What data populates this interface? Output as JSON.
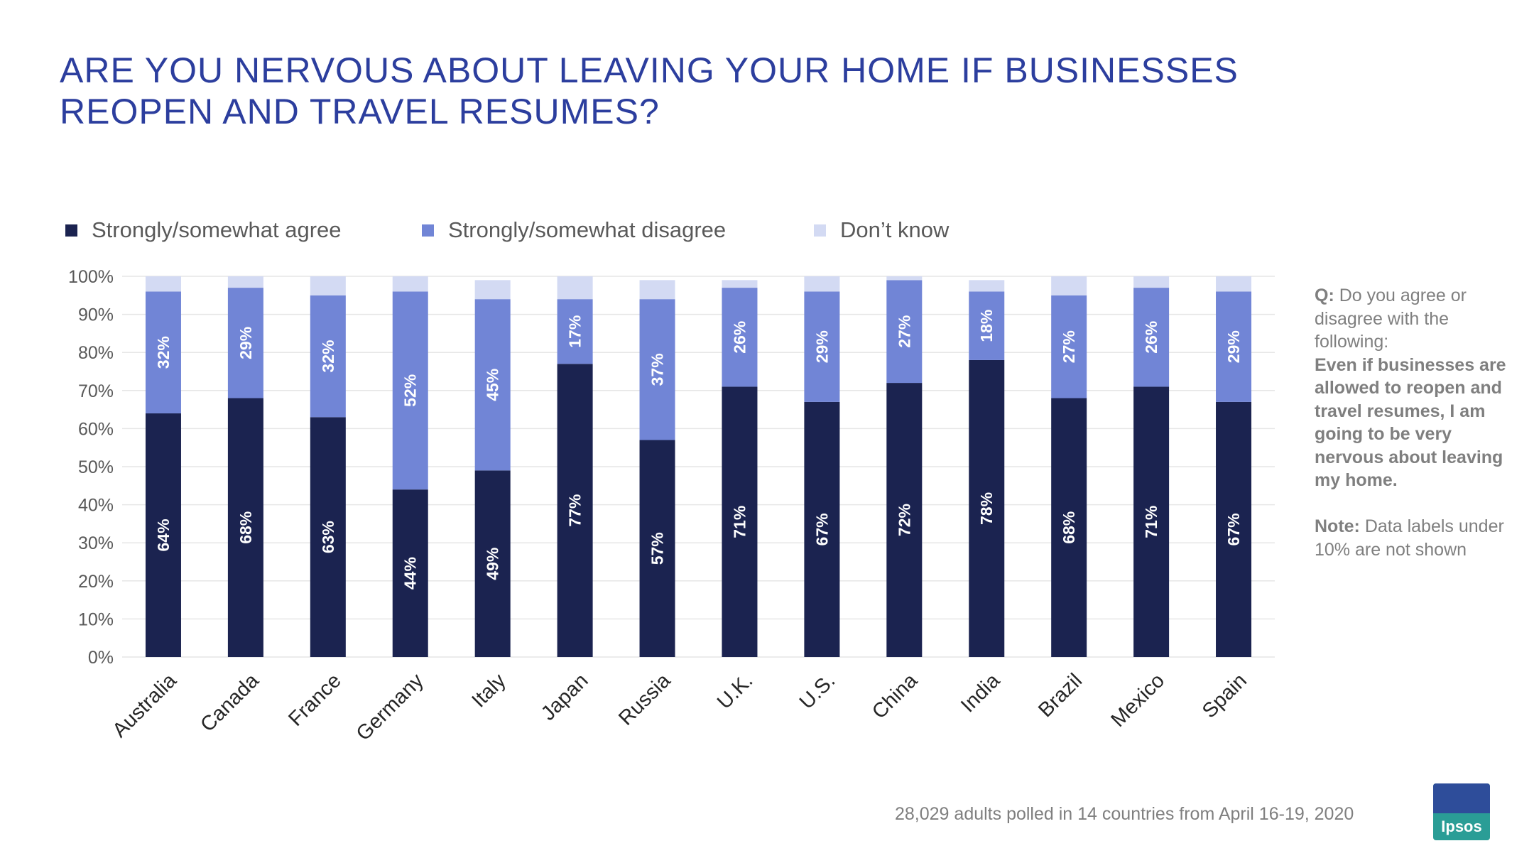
{
  "title_lines": [
    "ARE YOU NERVOUS ABOUT LEAVING YOUR HOME IF BUSINESSES",
    "REOPEN AND TRAVEL RESUMES?"
  ],
  "colors": {
    "agree": "#1b2350",
    "disagree": "#7185d6",
    "dont_know": "#d3daf3",
    "title": "#2c3e9e"
  },
  "side_note": {
    "q_label": "Q:",
    "q_text": "Do you agree or disagree with the following:",
    "statement": "Even if businesses are allowed to reopen and travel resumes, I am going to be very nervous about leaving my home.",
    "note_label": "Note:",
    "note_text": "Data labels under 10% are not shown"
  },
  "footer": "28,029 adults polled in 14 countries from April 16-19, 2020",
  "logo_text": "Ipsos",
  "chart_data": {
    "type": "bar",
    "stacked": true,
    "categories": [
      "Australia",
      "Canada",
      "France",
      "Germany",
      "Italy",
      "Japan",
      "Russia",
      "U.K.",
      "U.S.",
      "China",
      "India",
      "Brazil",
      "Mexico",
      "Spain"
    ],
    "series": [
      {
        "name": "Strongly/somewhat agree",
        "values": [
          64,
          68,
          63,
          44,
          49,
          77,
          57,
          71,
          67,
          72,
          78,
          68,
          71,
          67
        ],
        "labels": [
          "64%",
          "68%",
          "63%",
          "44%",
          "49%",
          "77%",
          "57%",
          "71%",
          "67%",
          "72%",
          "78%",
          "68%",
          "71%",
          "67%"
        ]
      },
      {
        "name": "Strongly/somewhat disagree",
        "values": [
          32,
          29,
          32,
          52,
          45,
          17,
          37,
          26,
          29,
          27,
          18,
          27,
          26,
          29
        ],
        "labels": [
          "32%",
          "29%",
          "32%",
          "52%",
          "45%",
          "17%",
          "37%",
          "26%",
          "29%",
          "27%",
          "18%",
          "27%",
          "26%",
          "29%"
        ]
      },
      {
        "name": "Don’t know",
        "values": [
          4,
          3,
          5,
          4,
          5,
          6,
          5,
          2,
          4,
          1,
          3,
          5,
          3,
          5
        ],
        "labels": [
          "",
          "",
          "",
          "",
          "",
          "",
          "",
          "",
          "",
          "",
          "",
          "",
          "",
          ""
        ]
      }
    ],
    "y_ticks": [
      "0%",
      "10%",
      "20%",
      "30%",
      "40%",
      "50%",
      "60%",
      "70%",
      "80%",
      "90%",
      "100%"
    ],
    "ylim": [
      0,
      100
    ],
    "grid": true,
    "legend_position": "top-left"
  }
}
